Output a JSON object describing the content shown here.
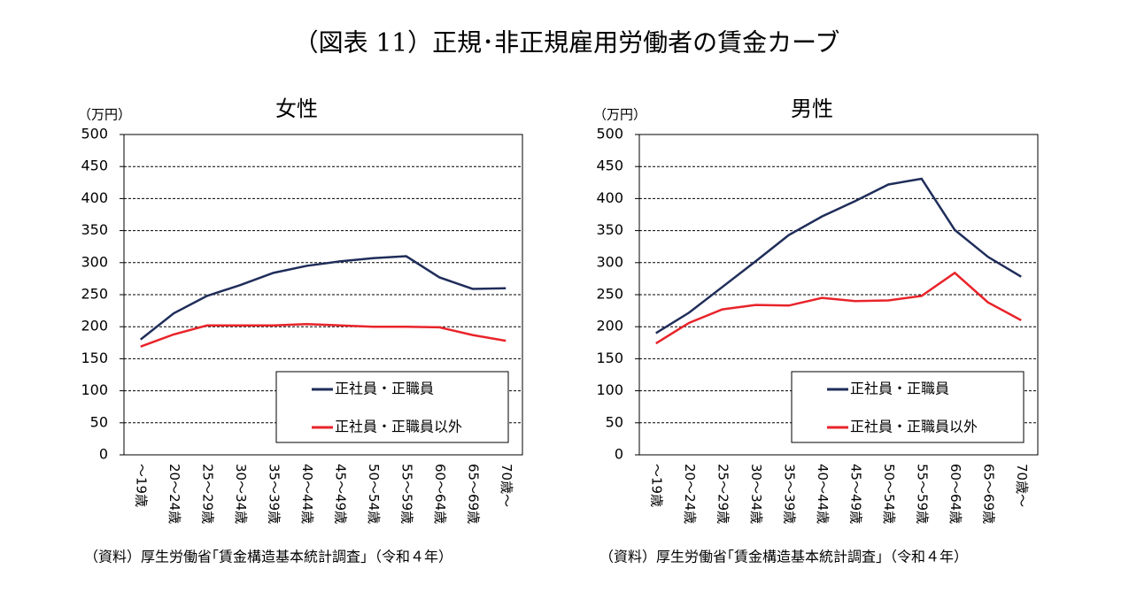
{
  "title": "（図表 11）正規･非正規雇用労働者の賃金カーブ",
  "chart_data": [
    {
      "type": "line",
      "title": "女性",
      "y_label": "（万円）",
      "source": "（資料）厚生労働省｢賃金構造基本統計調査｣（令和４年）",
      "categories": [
        "～19歳",
        "20～24歳",
        "25～29歳",
        "30～34歳",
        "35～39歳",
        "40～44歳",
        "45～49歳",
        "50～54歳",
        "55～59歳",
        "60～64歳",
        "65～69歳",
        "70歳～"
      ],
      "series": [
        {
          "name": "正社員・正職員",
          "color": "#1f2d5a",
          "values": [
            180,
            221,
            248,
            265,
            284,
            295,
            302,
            307,
            310,
            277,
            259,
            260
          ]
        },
        {
          "name": "正社員・正職員以外",
          "color": "#e8242a",
          "values": [
            169,
            188,
            202,
            202,
            202,
            204,
            202,
            200,
            200,
            199,
            187,
            178
          ]
        }
      ],
      "ylim": [
        0,
        500
      ],
      "yticks": [
        0,
        50,
        100,
        150,
        200,
        250,
        300,
        350,
        400,
        450,
        500
      ],
      "grid": true,
      "legend": "lower right"
    },
    {
      "type": "line",
      "title": "男性",
      "y_label": "（万円）",
      "source": "（資料）厚生労働省｢賃金構造基本統計調査｣（令和４年）",
      "categories": [
        "～19歳",
        "20～24歳",
        "25～29歳",
        "30～34歳",
        "35～39歳",
        "40～44歳",
        "45～49歳",
        "50～54歳",
        "55～59歳",
        "60～64歳",
        "65～69歳",
        "70歳～"
      ],
      "series": [
        {
          "name": "正社員・正職員",
          "color": "#1f2d5a",
          "values": [
            190,
            222,
            262,
            302,
            343,
            372,
            396,
            422,
            431,
            351,
            309,
            278
          ]
        },
        {
          "name": "正社員・正職員以外",
          "color": "#e8242a",
          "values": [
            174,
            206,
            227,
            234,
            233,
            245,
            240,
            241,
            248,
            284,
            238,
            210
          ]
        }
      ],
      "ylim": [
        0,
        500
      ],
      "yticks": [
        0,
        50,
        100,
        150,
        200,
        250,
        300,
        350,
        400,
        450,
        500
      ],
      "grid": true,
      "legend": "lower right"
    }
  ]
}
